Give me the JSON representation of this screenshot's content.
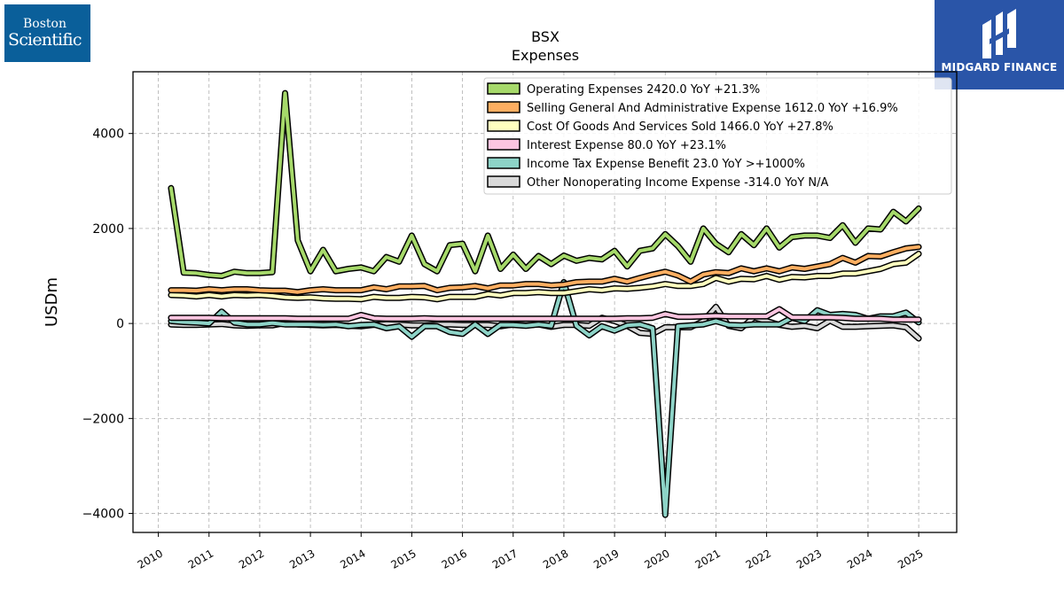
{
  "logos": {
    "left": {
      "line1": "Boston",
      "line2": "Scientific",
      "color": "#0a5f9a"
    },
    "right": {
      "text": "MIDGARD FINANCE",
      "color": "#2a55a8"
    }
  },
  "chart_data": {
    "type": "line",
    "title": "BSX",
    "subtitle": "Expenses",
    "xlabel": "",
    "ylabel": "USDm",
    "xlim": [
      2009.5,
      2025.75
    ],
    "ylim": [
      -4400,
      5300
    ],
    "yticks": [
      -4000,
      -2000,
      0,
      2000,
      4000
    ],
    "xticks": [
      2010,
      2011,
      2012,
      2013,
      2014,
      2015,
      2016,
      2017,
      2018,
      2019,
      2020,
      2021,
      2022,
      2023,
      2024,
      2025
    ],
    "grid": true,
    "legend_position": "top-right",
    "x": [
      2010.25,
      2010.5,
      2010.75,
      2011.0,
      2011.25,
      2011.5,
      2011.75,
      2012.0,
      2012.25,
      2012.5,
      2012.75,
      2013.0,
      2013.25,
      2013.5,
      2013.75,
      2014.0,
      2014.25,
      2014.5,
      2014.75,
      2015.0,
      2015.25,
      2015.5,
      2015.75,
      2016.0,
      2016.25,
      2016.5,
      2016.75,
      2017.0,
      2017.25,
      2017.5,
      2017.75,
      2018.0,
      2018.25,
      2018.5,
      2018.75,
      2019.0,
      2019.25,
      2019.5,
      2019.75,
      2020.0,
      2020.25,
      2020.5,
      2020.75,
      2021.0,
      2021.25,
      2021.5,
      2021.75,
      2022.0,
      2022.25,
      2022.5,
      2022.75,
      2023.0,
      2023.25,
      2023.5,
      2023.75,
      2024.0,
      2024.25,
      2024.5,
      2024.75,
      2025.0
    ],
    "series": [
      {
        "name": "Operating Expenses",
        "legend": "Operating Expenses  2420.0 YoY +21.3%",
        "color": "#a6d96a",
        "values": [
          2850,
          1070,
          1060,
          1020,
          1000,
          1090,
          1060,
          1060,
          1080,
          4850,
          1750,
          1100,
          1550,
          1100,
          1150,
          1180,
          1100,
          1400,
          1300,
          1850,
          1250,
          1100,
          1650,
          1680,
          1100,
          1850,
          1150,
          1450,
          1150,
          1420,
          1250,
          1430,
          1320,
          1380,
          1350,
          1530,
          1200,
          1530,
          1580,
          1880,
          1630,
          1300,
          2000,
          1680,
          1500,
          1880,
          1650,
          2000,
          1600,
          1820,
          1850,
          1850,
          1800,
          2070,
          1700,
          2000,
          1980,
          2350,
          2150,
          2420
        ]
      },
      {
        "name": "Selling General And Administrative Expense",
        "legend": "Selling General And Administrative Expense  1612.0 YoY +16.9%",
        "color": "#fdae61",
        "values": [
          700,
          700,
          690,
          720,
          700,
          720,
          720,
          700,
          690,
          690,
          660,
          700,
          720,
          700,
          700,
          700,
          760,
          720,
          780,
          780,
          790,
          700,
          750,
          760,
          790,
          740,
          800,
          800,
          830,
          830,
          800,
          820,
          870,
          880,
          880,
          940,
          880,
          960,
          1030,
          1090,
          1010,
          880,
          1030,
          1080,
          1060,
          1160,
          1100,
          1160,
          1100,
          1180,
          1150,
          1200,
          1250,
          1380,
          1280,
          1420,
          1410,
          1500,
          1580,
          1612
        ]
      },
      {
        "name": "Cost Of Goods And Services Sold",
        "legend": "Cost Of Goods And Services Sold  1466.0 YoY +27.8%",
        "color": "#ffffbf",
        "values": [
          600,
          590,
          570,
          600,
          570,
          600,
          590,
          600,
          580,
          550,
          540,
          550,
          530,
          520,
          520,
          510,
          560,
          540,
          540,
          560,
          550,
          510,
          560,
          560,
          560,
          620,
          590,
          640,
          640,
          660,
          640,
          640,
          680,
          720,
          700,
          740,
          730,
          750,
          780,
          830,
          790,
          790,
          830,
          960,
          880,
          940,
          930,
          1000,
          920,
          980,
          970,
          1000,
          1000,
          1050,
          1050,
          1100,
          1150,
          1250,
          1280,
          1466
        ]
      },
      {
        "name": "Interest Expense",
        "legend": "Interest Expense  80.0 YoY +23.1%",
        "color": "#fcc5e0",
        "values": [
          120,
          120,
          120,
          120,
          110,
          110,
          110,
          110,
          110,
          110,
          100,
          100,
          100,
          100,
          100,
          180,
          110,
          100,
          100,
          100,
          110,
          100,
          100,
          100,
          100,
          100,
          100,
          100,
          100,
          100,
          100,
          100,
          100,
          100,
          100,
          100,
          110,
          110,
          120,
          200,
          140,
          140,
          150,
          160,
          150,
          150,
          150,
          150,
          300,
          130,
          130,
          130,
          130,
          120,
          100,
          100,
          100,
          80,
          80,
          80
        ]
      },
      {
        "name": "Income Tax Expense Benefit",
        "legend": "Income Tax Expense Benefit  23.0 YoY >+1000%",
        "color": "#8dd3c7",
        "values": [
          50,
          30,
          20,
          0,
          250,
          20,
          -20,
          -20,
          10,
          -20,
          -20,
          -20,
          -30,
          -20,
          -60,
          -30,
          -20,
          -100,
          -60,
          -280,
          -60,
          -60,
          -180,
          -220,
          -20,
          -220,
          -30,
          -30,
          -50,
          -20,
          -50,
          870,
          -50,
          -250,
          -60,
          -150,
          -40,
          -20,
          -100,
          -4030,
          -60,
          -40,
          -20,
          50,
          -30,
          -40,
          -20,
          -20,
          -20,
          120,
          50,
          280,
          180,
          200,
          180,
          100,
          150,
          150,
          230,
          23
        ]
      },
      {
        "name": "Other Nonoperating Income Expense",
        "legend": "Other Nonoperating Income Expense  -314.0 YoY N/A",
        "color": "#d9d9d9",
        "values": [
          -20,
          -30,
          -30,
          -20,
          -10,
          -40,
          -50,
          -40,
          -40,
          10,
          -20,
          -30,
          -40,
          -30,
          -50,
          -60,
          -30,
          -10,
          -20,
          -40,
          -40,
          -20,
          -20,
          -30,
          -30,
          -30,
          -60,
          -20,
          -40,
          -20,
          -70,
          -30,
          -30,
          -50,
          120,
          50,
          -50,
          -200,
          -220,
          -80,
          -80,
          -80,
          50,
          350,
          -50,
          -100,
          130,
          50,
          -30,
          -70,
          -50,
          -100,
          60,
          -70,
          -70,
          -60,
          -50,
          -40,
          -80,
          -314
        ]
      }
    ]
  }
}
